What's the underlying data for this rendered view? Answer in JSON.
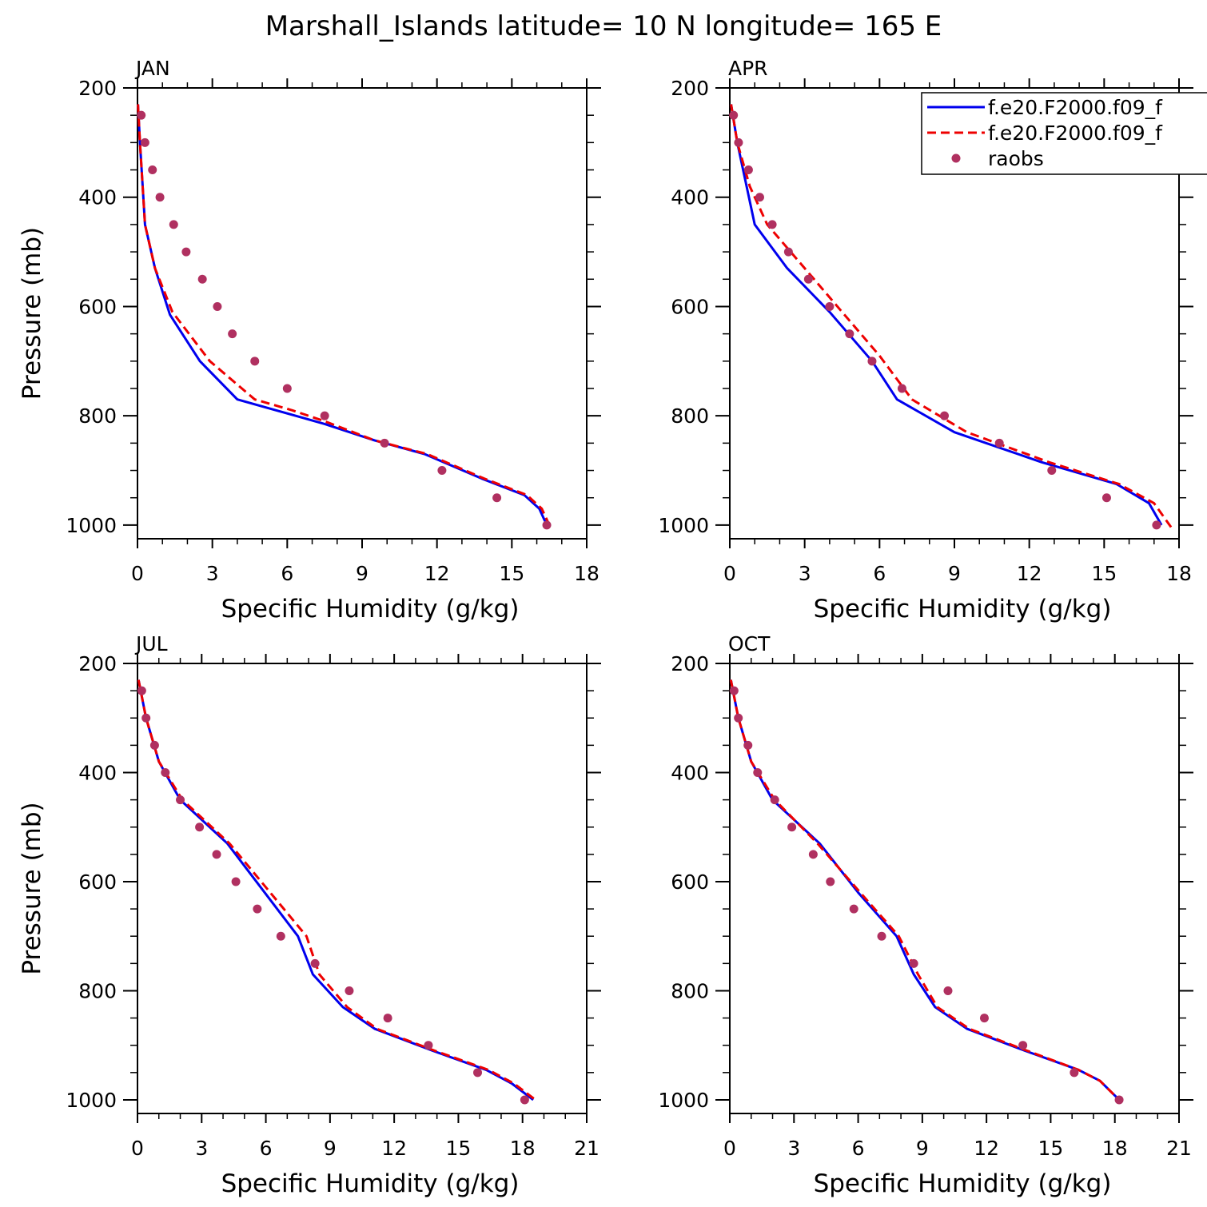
{
  "title": "Marshall_Islands  latitude= 10 N longitude= 165 E",
  "colors": {
    "model1": "#0000ee",
    "model2": "#ee0000",
    "raobs": "#b03060"
  },
  "legend": [
    "f.e20.F2000.f09_f",
    "f.e20.F2000.f09_f",
    "raobs"
  ],
  "chart_data": [
    {
      "type": "line",
      "panel": "JAN",
      "xlabel": "Specific Humidity (g/kg)",
      "ylabel": "Pressure (mb)",
      "xlim": [
        0,
        18
      ],
      "ylim": [
        1025,
        200
      ],
      "xticks": [
        0,
        3,
        6,
        9,
        12,
        15,
        18
      ],
      "yticks": [
        200,
        400,
        600,
        800,
        1000
      ],
      "series": [
        {
          "name": "f.e20.F2000.f09_f",
          "style": "solid",
          "x": [
            0.02,
            0.1,
            0.3,
            0.7,
            1.3,
            2.5,
            4.0,
            7.5,
            9.5,
            11.5,
            13.8,
            15.5,
            16.1,
            16.4
          ],
          "y": [
            230,
            300,
            450,
            530,
            615,
            700,
            770,
            815,
            845,
            870,
            915,
            945,
            970,
            1000
          ]
        },
        {
          "name": "f.e20.F2000.f09_f",
          "style": "dashed",
          "x": [
            0.02,
            0.1,
            0.3,
            0.7,
            1.4,
            2.9,
            4.7,
            6.2,
            7.5,
            9.5,
            11.6,
            13.9,
            15.6,
            16.2,
            16.5
          ],
          "y": [
            230,
            300,
            450,
            530,
            610,
            700,
            770,
            790,
            810,
            845,
            870,
            915,
            945,
            970,
            1000
          ]
        },
        {
          "name": "raobs",
          "style": "points",
          "x": [
            0.15,
            0.3,
            0.6,
            0.9,
            1.45,
            1.95,
            2.6,
            3.2,
            3.8,
            4.7,
            6.0,
            7.5,
            9.9,
            12.2,
            14.4,
            16.4
          ],
          "y": [
            250,
            300,
            350,
            400,
            450,
            500,
            550,
            600,
            650,
            700,
            750,
            800,
            850,
            900,
            950,
            1000
          ]
        }
      ]
    },
    {
      "type": "line",
      "panel": "APR",
      "xlabel": "Specific Humidity (g/kg)",
      "ylabel": "",
      "xlim": [
        0,
        18
      ],
      "ylim": [
        1025,
        200
      ],
      "xticks": [
        0,
        3,
        6,
        9,
        12,
        15,
        18
      ],
      "yticks": [
        200,
        400,
        600,
        800,
        1000
      ],
      "series": [
        {
          "name": "f.e20.F2000.f09_f",
          "style": "solid",
          "x": [
            0.05,
            0.3,
            1.0,
            2.3,
            4.0,
            5.7,
            6.7,
            9.0,
            12.5,
            15.5,
            16.8,
            17.3
          ],
          "y": [
            230,
            300,
            450,
            530,
            610,
            700,
            770,
            830,
            885,
            925,
            960,
            1000
          ]
        },
        {
          "name": "f.e20.F2000.f09_f",
          "style": "dashed",
          "x": [
            0.05,
            0.3,
            0.8,
            1.5,
            3.0,
            4.5,
            6.0,
            7.3,
            9.5,
            12.8,
            15.6,
            17.0,
            17.7
          ],
          "y": [
            230,
            300,
            380,
            450,
            530,
            610,
            690,
            770,
            830,
            885,
            925,
            960,
            1005
          ]
        },
        {
          "name": "raobs",
          "style": "points",
          "x": [
            0.15,
            0.35,
            0.75,
            1.2,
            1.7,
            2.35,
            3.15,
            4.0,
            4.8,
            5.7,
            6.9,
            8.6,
            10.8,
            12.9,
            15.1,
            17.1
          ],
          "y": [
            250,
            300,
            350,
            400,
            450,
            500,
            550,
            600,
            650,
            700,
            750,
            800,
            850,
            900,
            950,
            1000
          ]
        }
      ]
    },
    {
      "type": "line",
      "panel": "JUL",
      "xlabel": "Specific Humidity (g/kg)",
      "ylabel": "Pressure (mb)",
      "xlim": [
        0,
        21
      ],
      "ylim": [
        1025,
        200
      ],
      "xticks": [
        0,
        3,
        6,
        9,
        12,
        15,
        18,
        21
      ],
      "yticks": [
        200,
        400,
        600,
        800,
        1000
      ],
      "series": [
        {
          "name": "f.e20.F2000.f09_f",
          "style": "solid",
          "x": [
            0.05,
            0.4,
            1.0,
            2.0,
            4.2,
            7.5,
            8.2,
            9.6,
            11.1,
            13.8,
            16.3,
            17.5,
            18.5
          ],
          "y": [
            230,
            300,
            380,
            450,
            530,
            700,
            770,
            830,
            870,
            910,
            945,
            970,
            1000
          ]
        },
        {
          "name": "f.e20.F2000.f09_f",
          "style": "dashed",
          "x": [
            0.05,
            0.4,
            1.0,
            2.1,
            4.3,
            7.9,
            8.5,
            9.8,
            11.2,
            13.9,
            16.4,
            17.6,
            18.6
          ],
          "y": [
            230,
            300,
            380,
            450,
            530,
            700,
            770,
            830,
            870,
            910,
            945,
            970,
            1000
          ]
        },
        {
          "name": "raobs",
          "style": "points",
          "x": [
            0.2,
            0.4,
            0.8,
            1.3,
            2.0,
            2.9,
            3.7,
            4.6,
            5.6,
            6.7,
            8.3,
            9.9,
            11.7,
            13.6,
            15.9,
            18.1
          ],
          "y": [
            250,
            300,
            350,
            400,
            450,
            500,
            550,
            600,
            650,
            700,
            750,
            800,
            850,
            900,
            950,
            1000
          ]
        }
      ]
    },
    {
      "type": "line",
      "panel": "OCT",
      "xlabel": "Specific Humidity (g/kg)",
      "ylabel": "",
      "xlim": [
        0,
        21
      ],
      "ylim": [
        1025,
        200
      ],
      "xticks": [
        0,
        3,
        6,
        9,
        12,
        15,
        18,
        21
      ],
      "yticks": [
        200,
        400,
        600,
        800,
        1000
      ],
      "series": [
        {
          "name": "f.e20.F2000.f09_f",
          "style": "solid",
          "x": [
            0.05,
            0.4,
            1.0,
            2.0,
            4.2,
            6.0,
            7.8,
            8.6,
            9.6,
            11.1,
            13.8,
            16.3,
            17.3,
            18.2
          ],
          "y": [
            230,
            300,
            380,
            450,
            530,
            620,
            700,
            770,
            830,
            870,
            910,
            945,
            965,
            1000
          ]
        },
        {
          "name": "f.e20.F2000.f09_f",
          "style": "dashed",
          "x": [
            0.05,
            0.4,
            1.0,
            2.1,
            4.1,
            6.1,
            7.9,
            8.8,
            9.7,
            11.2,
            13.9,
            16.3,
            17.3,
            18.2
          ],
          "y": [
            230,
            300,
            380,
            450,
            530,
            620,
            700,
            770,
            830,
            870,
            910,
            945,
            965,
            1000
          ]
        },
        {
          "name": "raobs",
          "style": "points",
          "x": [
            0.2,
            0.4,
            0.85,
            1.3,
            2.1,
            2.9,
            3.9,
            4.7,
            5.8,
            7.1,
            8.6,
            10.2,
            11.9,
            13.7,
            16.1,
            18.2
          ],
          "y": [
            250,
            300,
            350,
            400,
            450,
            500,
            550,
            600,
            650,
            700,
            750,
            800,
            850,
            900,
            950,
            1000
          ]
        }
      ]
    }
  ]
}
